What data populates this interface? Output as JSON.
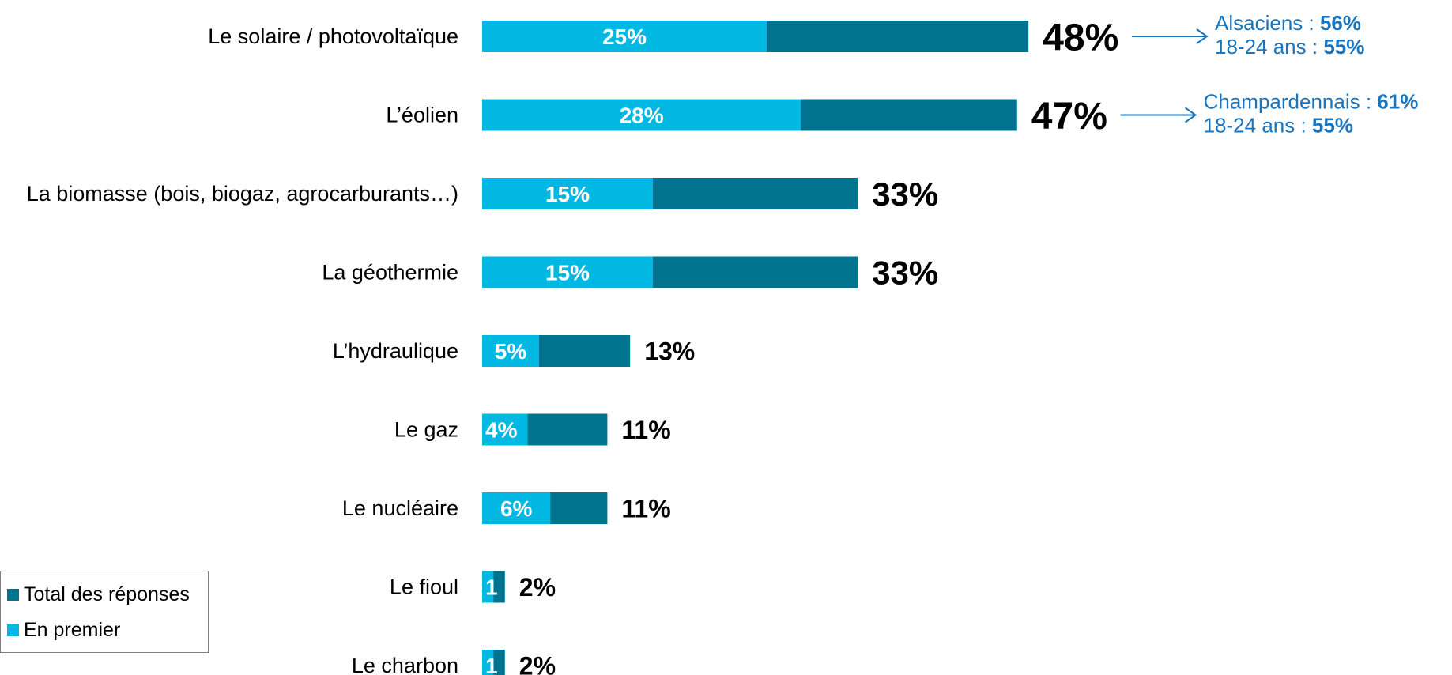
{
  "chart_data": {
    "type": "bar",
    "orientation": "horizontal",
    "stacked": "overlaid",
    "categories": [
      "Le solaire / photovoltaïque",
      "L’éolien",
      "La biomasse (bois, biogaz, agrocarburants…)",
      "La géothermie",
      "L’hydraulique",
      "Le gaz",
      "Le nucléaire",
      "Le fioul",
      "Le charbon"
    ],
    "series": [
      {
        "name": "Total des réponses",
        "values": [
          48,
          47,
          33,
          33,
          13,
          11,
          11,
          2,
          2
        ],
        "color": "#00738f"
      },
      {
        "name": "En premier",
        "values": [
          25,
          28,
          15,
          15,
          5,
          4,
          6,
          1,
          1
        ],
        "color": "#00b8e2"
      }
    ],
    "value_labels": {
      "total": [
        "48%",
        "47%",
        "33%",
        "33%",
        "13%",
        "11%",
        "11%",
        "2%",
        "2%"
      ],
      "first": [
        "25%",
        "28%",
        "15%",
        "15%",
        "5%",
        "4%",
        "6%",
        "1",
        "1"
      ]
    },
    "xlim": [
      0,
      100
    ],
    "grid": false,
    "legend_position": "bottom-left",
    "annotations": [
      {
        "category_index": 0,
        "lines": [
          {
            "label": "Alsaciens : ",
            "value": "56%"
          },
          {
            "label": "18-24 ans : ",
            "value": "55%"
          }
        ]
      },
      {
        "category_index": 1,
        "lines": [
          {
            "label": "Champardennais : ",
            "value": "61%"
          },
          {
            "label": "18-24 ans : ",
            "value": "55%"
          }
        ]
      }
    ],
    "annotation_color": "#1a75bc"
  }
}
